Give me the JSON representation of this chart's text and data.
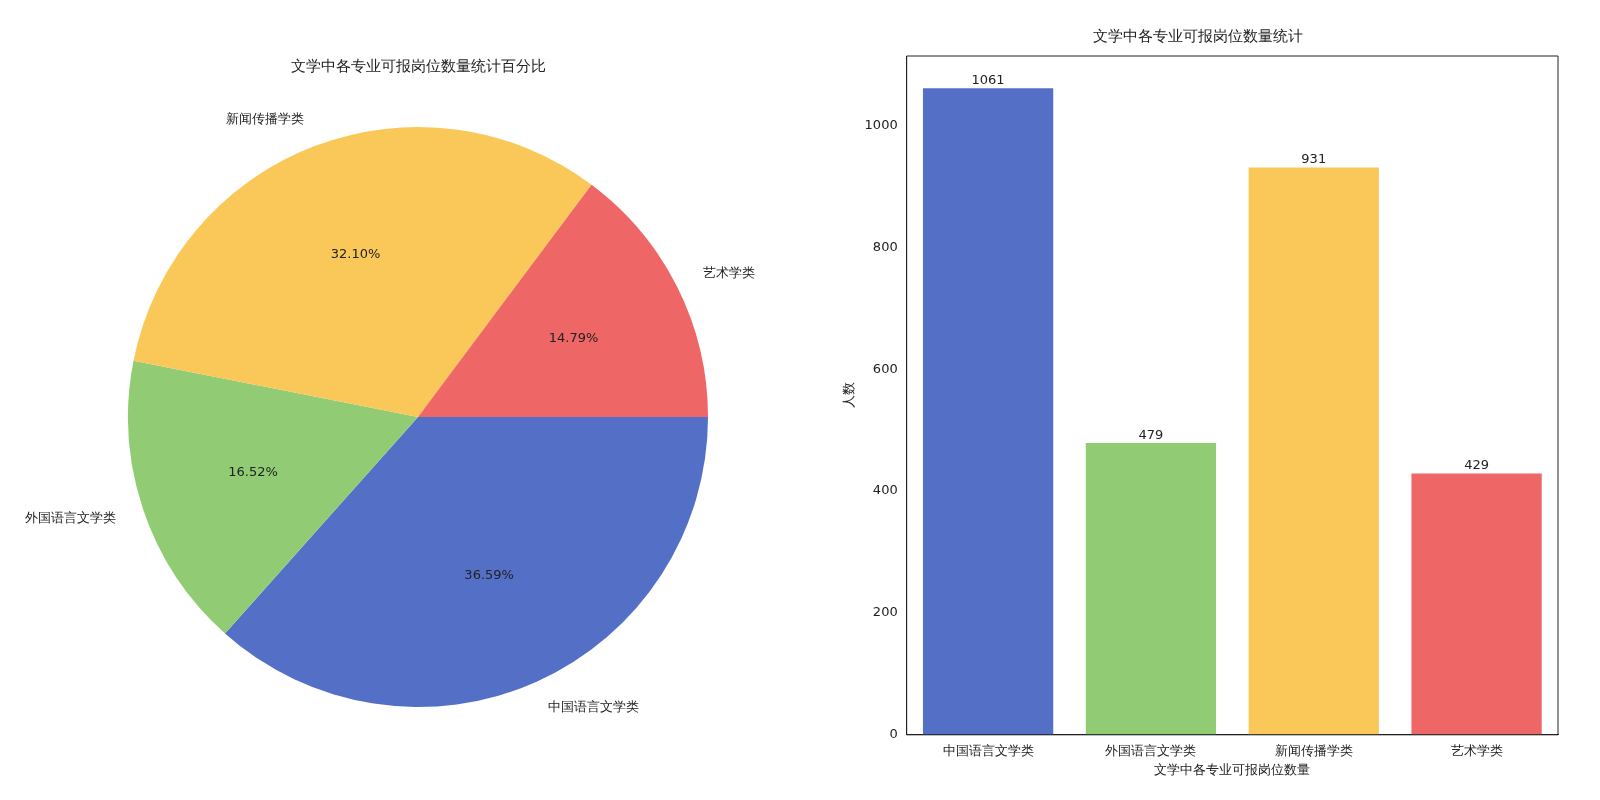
{
  "chart_data": [
    {
      "type": "pie",
      "title": "文学中各专业可报岗位数量统计百分比",
      "categories": [
        "中国语言文学类",
        "外国语言文学类",
        "新闻传播学类",
        "艺术学类"
      ],
      "values": [
        36.59,
        16.52,
        32.1,
        14.79
      ],
      "colors": [
        "#5470c6",
        "#91cc75",
        "#fac858",
        "#ee6666"
      ],
      "value_labels": [
        "36.59%",
        "16.52%",
        "32.10%",
        "14.79%"
      ],
      "legend": false
    },
    {
      "type": "bar",
      "title": "文学中各专业可报岗位数量统计",
      "categories": [
        "中国语言文学类",
        "外国语言文学类",
        "新闻传播学类",
        "艺术学类"
      ],
      "values": [
        1061,
        479,
        931,
        429
      ],
      "colors": [
        "#5470c6",
        "#91cc75",
        "#fac858",
        "#ee6666"
      ],
      "xlabel": "文学中各专业可报岗位数量",
      "ylabel": "人数",
      "ylim": [
        0,
        1114
      ],
      "yticks": [
        0,
        200,
        400,
        600,
        800,
        1000
      ],
      "data_labels": true,
      "grid": false,
      "legend": false
    }
  ]
}
